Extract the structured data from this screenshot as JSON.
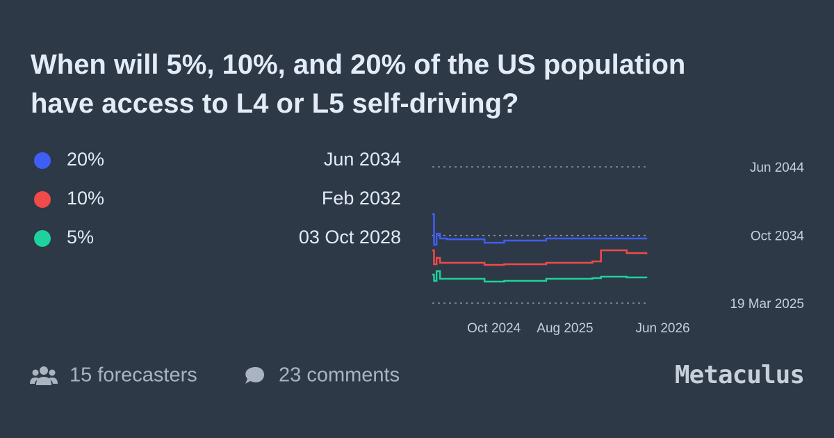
{
  "chart_data": {
    "type": "line",
    "step": true,
    "title": [
      "When will 5%, 10%, and 20% of the US population",
      "have access to L4 or L5 self-driving?"
    ],
    "x": [
      2024.03,
      2024.05,
      2024.08,
      2024.12,
      2024.2,
      2024.64,
      2024.87,
      2025.36,
      2025.9,
      2026.0,
      2026.3,
      2026.53
    ],
    "series": [
      {
        "name": "20%",
        "latest": "Jun 2034",
        "color": "#3f5ef8",
        "values": [
          2037.75,
          2033.44,
          2035.0,
          2034.32,
          2034.22,
          2033.73,
          2034.03,
          2034.32,
          2034.32,
          2034.32,
          2034.32,
          2034.42
        ]
      },
      {
        "name": "10%",
        "latest": "Feb 2032",
        "color": "#f04a4a",
        "values": [
          2032.66,
          2030.7,
          2031.58,
          2030.89,
          2030.89,
          2030.6,
          2030.7,
          2030.89,
          2031.09,
          2032.66,
          2032.27,
          2032.08
        ]
      },
      {
        "name": "5%",
        "latest": "03 Oct 2028",
        "color": "#1fd19c",
        "values": [
          2029.23,
          2028.35,
          2029.72,
          2028.64,
          2028.64,
          2028.25,
          2028.35,
          2028.64,
          2028.74,
          2028.93,
          2028.84,
          2028.74
        ]
      }
    ],
    "xlim": [
      2024.03,
      2026.53
    ],
    "xticks": [
      {
        "value": 2024.75,
        "label": "Oct 2024"
      },
      {
        "value": 2025.58,
        "label": "Aug 2025"
      },
      {
        "value": 2026.42,
        "label": "Jun 2026"
      }
    ],
    "ylim": [
      2025.21,
      2044.42
    ],
    "yticks": [
      {
        "value": 2044.42,
        "label": "Jun 2044"
      },
      {
        "value": 2034.75,
        "label": "Oct 2034"
      },
      {
        "value": 2025.21,
        "label": "19 Mar 2025"
      }
    ],
    "grid": true
  },
  "footer": {
    "forecasters": "15 forecasters",
    "comments": "23 comments",
    "brand": "Metaculus"
  }
}
